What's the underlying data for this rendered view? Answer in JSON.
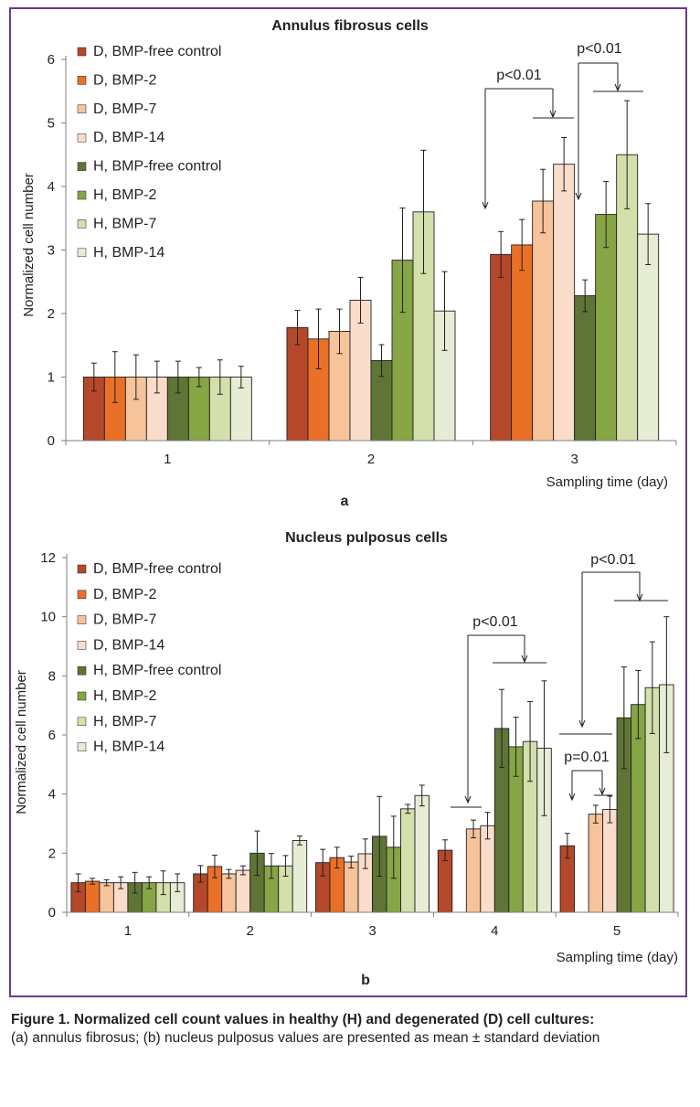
{
  "chart_data": [
    {
      "type": "bar",
      "panel_label": "a",
      "title": "Annulus fibrosus cells",
      "xlabel": "Sampling time (day)",
      "ylabel": "Normalized cell number",
      "ylim": [
        0,
        6
      ],
      "yticks": [
        0,
        1,
        2,
        3,
        4,
        5,
        6
      ],
      "grid": false,
      "legend_position": "top-left",
      "categories": [
        "1",
        "2",
        "3"
      ],
      "series": [
        {
          "name": "D, BMP-free control",
          "color": "#b5482a",
          "values": [
            1.0,
            1.78,
            2.93
          ],
          "errors": [
            0.22,
            0.27,
            0.36
          ]
        },
        {
          "name": "D, BMP-2",
          "color": "#ea7028",
          "values": [
            1.0,
            1.6,
            3.08
          ],
          "errors": [
            0.4,
            0.47,
            0.4
          ]
        },
        {
          "name": "D, BMP-7",
          "color": "#f6c39b",
          "values": [
            1.0,
            1.72,
            3.77
          ],
          "errors": [
            0.35,
            0.35,
            0.5
          ]
        },
        {
          "name": "D, BMP-14",
          "color": "#f9ddca",
          "values": [
            1.0,
            2.21,
            4.35
          ],
          "errors": [
            0.25,
            0.36,
            0.42
          ]
        },
        {
          "name": "H, BMP-free control",
          "color": "#5f7536",
          "values": [
            1.0,
            1.26,
            2.28
          ],
          "errors": [
            0.25,
            0.25,
            0.25
          ]
        },
        {
          "name": "H, BMP-2",
          "color": "#86a544",
          "values": [
            1.0,
            2.84,
            3.56
          ],
          "errors": [
            0.15,
            0.82,
            0.52
          ]
        },
        {
          "name": "H, BMP-7",
          "color": "#d3e0ab",
          "values": [
            1.0,
            3.6,
            4.5
          ],
          "errors": [
            0.27,
            0.97,
            0.85
          ]
        },
        {
          "name": "H, BMP-14",
          "color": "#e6edd4",
          "values": [
            1.0,
            2.04,
            3.25
          ],
          "errors": [
            0.17,
            0.62,
            0.48
          ]
        }
      ],
      "annotations": [
        "p<0.01",
        "p<0.01"
      ]
    },
    {
      "type": "bar",
      "panel_label": "b",
      "title": "Nucleus pulposus cells",
      "xlabel": "Sampling time (day)",
      "ylabel": "Normalized cell number",
      "ylim": [
        0,
        12
      ],
      "yticks": [
        0,
        2,
        4,
        6,
        8,
        10,
        12
      ],
      "grid": false,
      "legend_position": "top-left",
      "categories": [
        "1",
        "2",
        "3",
        "4",
        "5"
      ],
      "series": [
        {
          "name": "D, BMP-free control",
          "color": "#b5482a",
          "values": [
            1.0,
            1.3,
            1.68,
            2.1,
            2.25
          ],
          "errors": [
            0.3,
            0.28,
            0.45,
            0.35,
            0.42
          ]
        },
        {
          "name": "D, BMP-2",
          "color": "#ea7028",
          "values": [
            1.05,
            1.55,
            1.85,
            null,
            null
          ],
          "errors": [
            0.1,
            0.38,
            0.35,
            null,
            null
          ]
        },
        {
          "name": "D, BMP-7",
          "color": "#f6c39b",
          "values": [
            1.0,
            1.3,
            1.7,
            2.82,
            3.32
          ],
          "errors": [
            0.1,
            0.15,
            0.2,
            0.3,
            0.3
          ]
        },
        {
          "name": "D, BMP-14",
          "color": "#f9ddca",
          "values": [
            1.0,
            1.42,
            1.98,
            2.93,
            3.48
          ],
          "errors": [
            0.2,
            0.15,
            0.5,
            0.45,
            0.45
          ]
        },
        {
          "name": "H, BMP-free control",
          "color": "#5f7536",
          "values": [
            1.0,
            2.0,
            2.57,
            6.22,
            6.58
          ],
          "errors": [
            0.35,
            0.75,
            1.35,
            1.32,
            1.72
          ]
        },
        {
          "name": "H, BMP-2",
          "color": "#86a544",
          "values": [
            1.0,
            1.57,
            2.2,
            5.6,
            7.03
          ],
          "errors": [
            0.2,
            0.42,
            1.05,
            1.0,
            1.15
          ]
        },
        {
          "name": "H, BMP-7",
          "color": "#d3e0ab",
          "values": [
            1.0,
            1.57,
            3.5,
            5.78,
            7.6
          ],
          "errors": [
            0.4,
            0.35,
            0.15,
            1.35,
            1.55
          ]
        },
        {
          "name": "H, BMP-14",
          "color": "#e6edd4",
          "values": [
            1.0,
            2.43,
            3.95,
            5.55,
            7.7
          ],
          "errors": [
            0.3,
            0.15,
            0.35,
            2.28,
            2.3
          ]
        }
      ],
      "annotations": [
        "p<0.01",
        "p<0.01",
        "p=0.01"
      ]
    }
  ],
  "caption": {
    "bold": "Figure 1. Normalized cell count values in healthy (H) and degenerated (D) cell cultures:",
    "text": "(a) annulus fibrosus; (b) nucleus pulposus values are presented as mean ± standard deviation"
  }
}
